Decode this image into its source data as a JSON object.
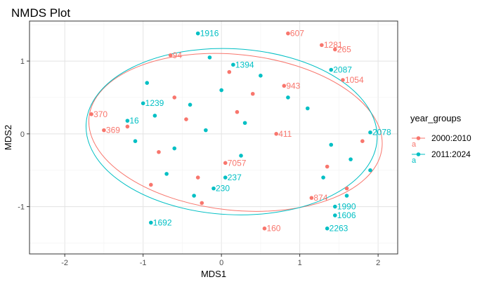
{
  "chart_data": {
    "type": "scatter",
    "title": "NMDS Plot",
    "xlabel": "MDS1",
    "ylabel": "MDS2",
    "xlim": [
      -2.45,
      2.25
    ],
    "ylim": [
      -1.65,
      1.55
    ],
    "x_ticks": [
      -2,
      -1,
      0,
      1,
      2
    ],
    "y_ticks": [
      -1,
      0,
      1
    ],
    "grid": true,
    "legend": {
      "title": "year_groups",
      "position": "right"
    },
    "series": [
      {
        "name": "2000:2010",
        "color": "#F8766D",
        "points": [
          {
            "label": "607",
            "x": 0.85,
            "y": 1.38
          },
          {
            "label": "1281",
            "x": 1.28,
            "y": 1.22
          },
          {
            "label": "265",
            "x": 1.45,
            "y": 1.16
          },
          {
            "label": "1054",
            "x": 1.55,
            "y": 0.74
          },
          {
            "label": "370",
            "x": -1.66,
            "y": 0.27
          },
          {
            "label": "369",
            "x": -1.5,
            "y": 0.05
          },
          {
            "label": "411",
            "x": 0.7,
            "y": 0.0
          },
          {
            "label": "874",
            "x": 1.15,
            "y": -0.88
          },
          {
            "label": "160",
            "x": 0.55,
            "y": -1.3
          },
          {
            "label": "943",
            "x": 0.8,
            "y": 0.66
          },
          {
            "label": "7057",
            "x": 0.05,
            "y": -0.4
          },
          {
            "label": "94",
            "x": -0.65,
            "y": 1.08
          },
          {
            "label": "",
            "x": -1.2,
            "y": 0.1
          },
          {
            "label": "",
            "x": -0.8,
            "y": -0.25
          },
          {
            "label": "",
            "x": -0.6,
            "y": 0.5
          },
          {
            "label": "",
            "x": -0.3,
            "y": -0.6
          },
          {
            "label": "",
            "x": 0.2,
            "y": 0.3
          },
          {
            "label": "",
            "x": 0.4,
            "y": 0.55
          },
          {
            "label": "",
            "x": -0.25,
            "y": -0.95
          },
          {
            "label": "",
            "x": 1.35,
            "y": -0.45
          },
          {
            "label": "",
            "x": 1.6,
            "y": -0.75
          },
          {
            "label": "",
            "x": 1.8,
            "y": -0.1
          },
          {
            "label": "",
            "x": -0.9,
            "y": -0.7
          },
          {
            "label": "",
            "x": 0.1,
            "y": 0.85
          },
          {
            "label": "",
            "x": -0.45,
            "y": 0.2
          }
        ]
      },
      {
        "name": "2011:2024",
        "color": "#00BFC4",
        "points": [
          {
            "label": "1916",
            "x": -0.3,
            "y": 1.38
          },
          {
            "label": "1239",
            "x": -1.0,
            "y": 0.42
          },
          {
            "label": "16",
            "x": -1.2,
            "y": 0.18
          },
          {
            "label": "2078",
            "x": 1.9,
            "y": 0.02
          },
          {
            "label": "1692",
            "x": -0.9,
            "y": -1.22
          },
          {
            "label": "1990",
            "x": 1.45,
            "y": -1.0
          },
          {
            "label": "1606",
            "x": 1.45,
            "y": -1.12
          },
          {
            "label": "2263",
            "x": 1.35,
            "y": -1.3
          },
          {
            "label": "237",
            "x": 0.05,
            "y": -0.6
          },
          {
            "label": "230",
            "x": -0.1,
            "y": -0.75
          },
          {
            "label": "2087",
            "x": 1.4,
            "y": 0.88
          },
          {
            "label": "1394",
            "x": 0.15,
            "y": 0.95
          },
          {
            "label": "",
            "x": -1.1,
            "y": -0.1
          },
          {
            "label": "",
            "x": -0.85,
            "y": 0.25
          },
          {
            "label": "",
            "x": -0.6,
            "y": -0.2
          },
          {
            "label": "",
            "x": -0.4,
            "y": 0.4
          },
          {
            "label": "",
            "x": -0.2,
            "y": 0.05
          },
          {
            "label": "",
            "x": 0.0,
            "y": 0.6
          },
          {
            "label": "",
            "x": 0.3,
            "y": 0.15
          },
          {
            "label": "",
            "x": 0.5,
            "y": 0.8
          },
          {
            "label": "",
            "x": 0.85,
            "y": 0.5
          },
          {
            "label": "",
            "x": 1.1,
            "y": 0.35
          },
          {
            "label": "",
            "x": 1.4,
            "y": -0.15
          },
          {
            "label": "",
            "x": 1.65,
            "y": -0.35
          },
          {
            "label": "",
            "x": 1.9,
            "y": -0.5
          },
          {
            "label": "",
            "x": 1.3,
            "y": -0.6
          },
          {
            "label": "",
            "x": 1.6,
            "y": -0.85
          },
          {
            "label": "",
            "x": -0.7,
            "y": -0.55
          },
          {
            "label": "",
            "x": -0.35,
            "y": -0.85
          },
          {
            "label": "",
            "x": -0.95,
            "y": 0.7
          },
          {
            "label": "",
            "x": -0.15,
            "y": 1.05
          },
          {
            "label": "",
            "x": 0.25,
            "y": -0.3
          }
        ]
      }
    ],
    "ellipses": [
      {
        "series": "2000:2010",
        "cx": 0.18,
        "cy": 0.02,
        "rx": 1.88,
        "ry": 1.07,
        "angle": -6
      },
      {
        "series": "2011:2024",
        "cx": 0.13,
        "cy": 0.03,
        "rx": 1.86,
        "ry": 1.14,
        "angle": -3
      }
    ]
  }
}
